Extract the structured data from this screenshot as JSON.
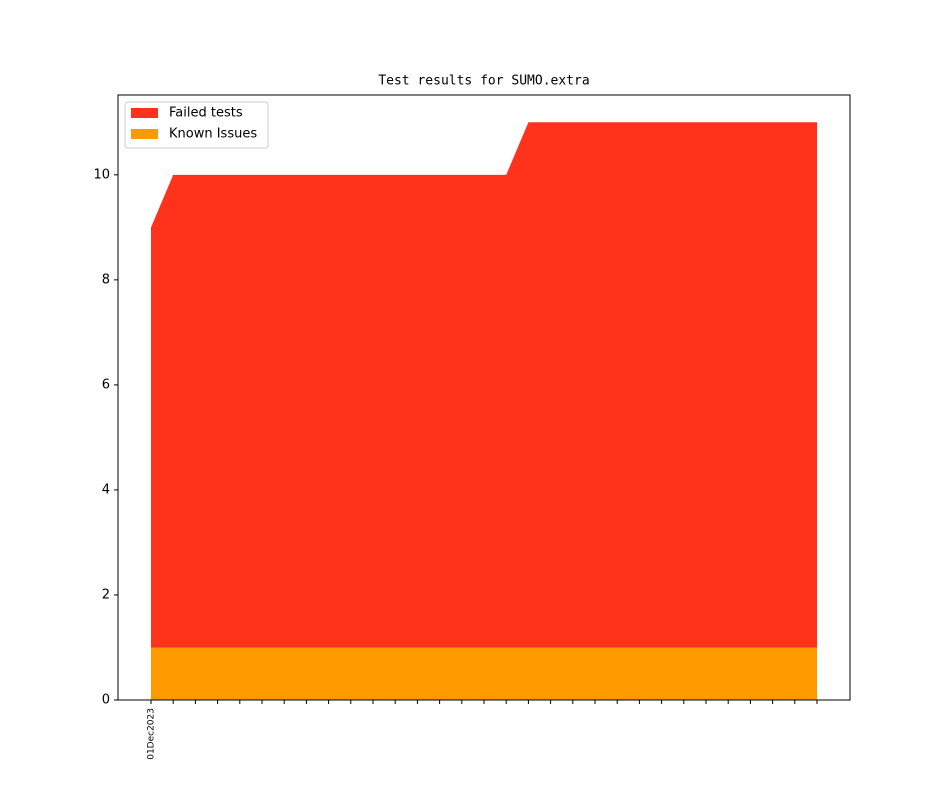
{
  "chart_data": {
    "type": "stacked_area",
    "title": "Test results for SUMO.extra",
    "categories": [
      "01Dec2023",
      null,
      null,
      null,
      null,
      null,
      null,
      null,
      null,
      null,
      null,
      null,
      null,
      null,
      null,
      null,
      null,
      null,
      null,
      null,
      null,
      null,
      null,
      null,
      null,
      null,
      null,
      null,
      null,
      null,
      null
    ],
    "series": [
      {
        "name": "Failed tests",
        "color": "#ff331c",
        "values": [
          8,
          9,
          9,
          9,
          9,
          9,
          9,
          9,
          9,
          9,
          9,
          9,
          9,
          9,
          9,
          9,
          9,
          10,
          10,
          10,
          10,
          10,
          10,
          10,
          10,
          10,
          10,
          10,
          10,
          10,
          10
        ]
      },
      {
        "name": "Known Issues",
        "color": "#ff9900",
        "values": [
          1,
          1,
          1,
          1,
          1,
          1,
          1,
          1,
          1,
          1,
          1,
          1,
          1,
          1,
          1,
          1,
          1,
          1,
          1,
          1,
          1,
          1,
          1,
          1,
          1,
          1,
          1,
          1,
          1,
          1,
          1
        ]
      }
    ],
    "ylim": [
      0,
      11.52
    ],
    "yticks": [
      0,
      2,
      4,
      6,
      8,
      10
    ],
    "legend": "upper left"
  }
}
